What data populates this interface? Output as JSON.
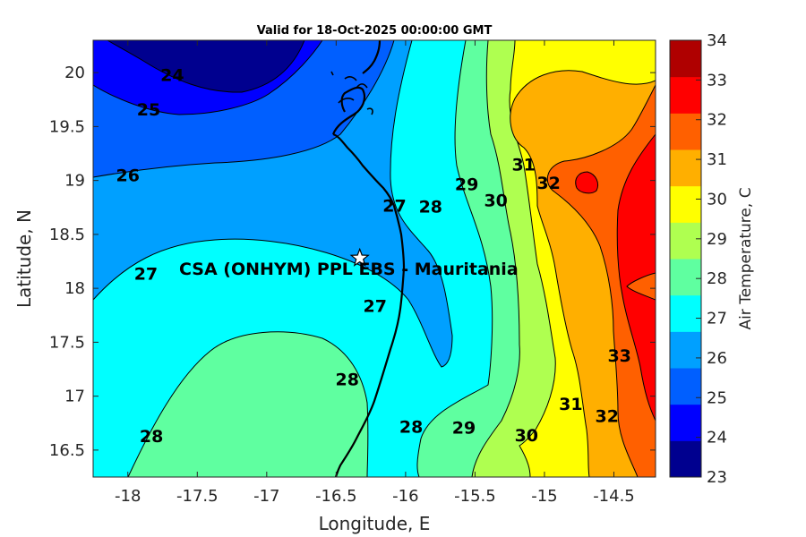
{
  "title": "Valid for 18-Oct-2025 00:00:00 GMT",
  "chart_data": {
    "type": "contour-map",
    "xlabel": "Longitude, E",
    "ylabel": "Latitude, N",
    "xlim": [
      -18.25,
      -14.2
    ],
    "ylim": [
      16.25,
      20.3
    ],
    "x_ticks": [
      "-18",
      "-17.5",
      "-17",
      "-16.5",
      "-16",
      "-15.5",
      "-15",
      "-14.5"
    ],
    "y_ticks": [
      "20",
      "19.5",
      "19",
      "18.5",
      "18",
      "17.5",
      "17",
      "16.5"
    ],
    "colorbar": {
      "label": "Air Temperature, C",
      "min": 23,
      "max": 34,
      "ticks": [
        "34",
        "33",
        "32",
        "31",
        "30",
        "29",
        "28",
        "27",
        "26",
        "25",
        "24",
        "23"
      ],
      "colors": [
        "#00008f",
        "#0000ff",
        "#005fff",
        "#00a0ff",
        "#00ffff",
        "#5fffa0",
        "#afff50",
        "#ffff00",
        "#ffaf00",
        "#ff6000",
        "#ff0000",
        "#af0000"
      ]
    },
    "contour_labels": [
      {
        "text": "24",
        "lon": -17.68,
        "lat": 19.98
      },
      {
        "text": "25",
        "lon": -17.85,
        "lat": 19.66
      },
      {
        "text": "26",
        "lon": -18.0,
        "lat": 19.05
      },
      {
        "text": "27",
        "lon": -16.08,
        "lat": 18.77
      },
      {
        "text": "27",
        "lon": -17.87,
        "lat": 18.14
      },
      {
        "text": "27",
        "lon": -16.22,
        "lat": 17.84
      },
      {
        "text": "28",
        "lon": -15.82,
        "lat": 18.76
      },
      {
        "text": "28",
        "lon": -16.42,
        "lat": 17.16
      },
      {
        "text": "28",
        "lon": -17.83,
        "lat": 16.63
      },
      {
        "text": "28",
        "lon": -15.96,
        "lat": 16.72
      },
      {
        "text": "29",
        "lon": -15.56,
        "lat": 18.97
      },
      {
        "text": "29",
        "lon": -15.58,
        "lat": 16.71
      },
      {
        "text": "30",
        "lon": -15.35,
        "lat": 18.82
      },
      {
        "text": "30",
        "lon": -15.13,
        "lat": 16.64
      },
      {
        "text": "31",
        "lon": -15.15,
        "lat": 19.15
      },
      {
        "text": "31",
        "lon": -14.81,
        "lat": 16.93
      },
      {
        "text": "32",
        "lon": -14.97,
        "lat": 18.98
      },
      {
        "text": "32",
        "lon": -14.55,
        "lat": 16.82
      },
      {
        "text": "33",
        "lon": -14.46,
        "lat": 17.38
      }
    ],
    "site": {
      "name": "CSA (ONHYM) PPL EBS  - Mauritania",
      "lon": -16.33,
      "lat": 18.28
    }
  }
}
